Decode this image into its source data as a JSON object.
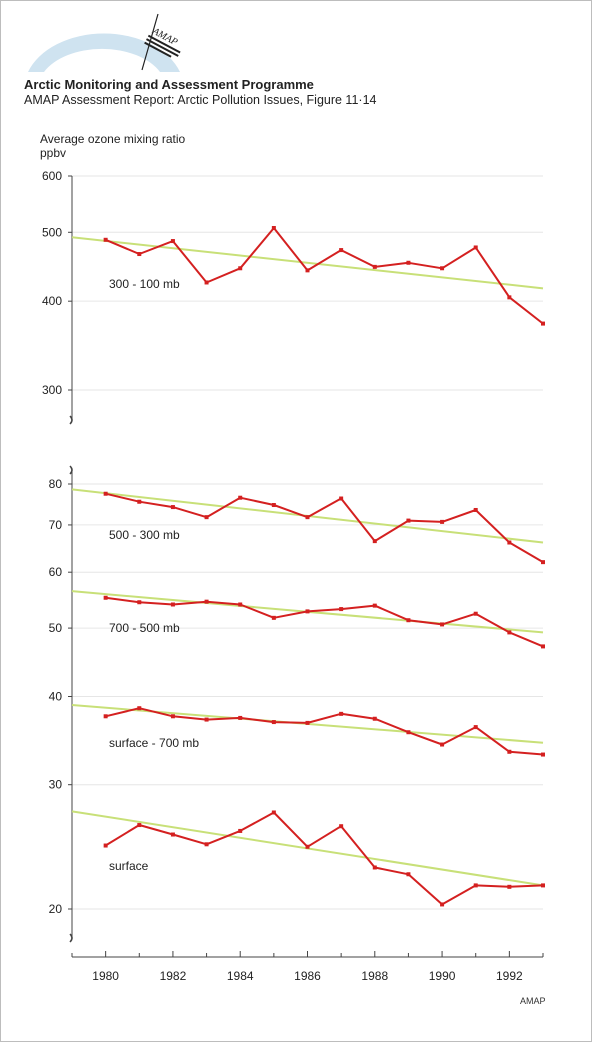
{
  "header": {
    "logo_text": "AMAP",
    "org_title": "Arctic Monitoring and Assessment Programme",
    "report_subtitle": "AMAP Assessment Report: Arctic Pollution Issues, Figure 11·14"
  },
  "colors": {
    "data_line": "#d42020",
    "trend_line": "#c8e078",
    "grid": "#e6e6e6",
    "axis": "#444444",
    "logo_arc": "#cfe3f0"
  },
  "chart_data": {
    "type": "line",
    "y_title": [
      "Average ozone mixing ratio",
      "ppbv"
    ],
    "y_scale": "log",
    "x_ticks": [
      1980,
      1982,
      1984,
      1986,
      1988,
      1990,
      1992
    ],
    "x_range": [
      1979,
      1993
    ],
    "upper_panel": {
      "y_ticks": [
        300,
        400,
        500,
        600
      ],
      "y_range": [
        270,
        600
      ],
      "series": [
        {
          "name": "300 - 100 mb",
          "x": [
            1980,
            1981,
            1982,
            1983,
            1984,
            1985,
            1986,
            1987,
            1988,
            1989,
            1990,
            1991,
            1992,
            1993
          ],
          "y": [
            488,
            466,
            486,
            425,
            445,
            507,
            442,
            472,
            447,
            453,
            445,
            476,
            405,
            372
          ],
          "trend": [
            [
              1979,
              492
            ],
            [
              1993,
              417
            ]
          ]
        }
      ]
    },
    "lower_panel": {
      "y_ticks": [
        20,
        30,
        40,
        50,
        60,
        70,
        80
      ],
      "y_range": [
        18,
        85
      ],
      "series": [
        {
          "name": "500 - 300 mb",
          "x": [
            1980,
            1981,
            1982,
            1983,
            1984,
            1985,
            1986,
            1987,
            1988,
            1989,
            1990,
            1991,
            1992,
            1993
          ],
          "y": [
            77.5,
            75.5,
            74.2,
            71.8,
            76.5,
            74.7,
            71.8,
            76.3,
            66.4,
            71,
            70.7,
            73.5,
            66.1,
            62
          ],
          "trend": [
            [
              1979,
              78.6
            ],
            [
              1993,
              66.1
            ]
          ]
        },
        {
          "name": "700 - 500 mb",
          "x": [
            1980,
            1981,
            1982,
            1983,
            1984,
            1985,
            1986,
            1987,
            1988,
            1989,
            1990,
            1991,
            1992,
            1993
          ],
          "y": [
            55.2,
            54.4,
            54,
            54.5,
            54,
            51.7,
            52.8,
            53.2,
            53.8,
            51.3,
            50.6,
            52.4,
            49.3,
            47.1
          ],
          "trend": [
            [
              1979,
              56.4
            ],
            [
              1993,
              49.3
            ]
          ]
        },
        {
          "name": "surface - 700 mb",
          "x": [
            1980,
            1981,
            1982,
            1983,
            1984,
            1985,
            1986,
            1987,
            1988,
            1989,
            1990,
            1991,
            1992,
            1993
          ],
          "y": [
            37.5,
            38.5,
            37.5,
            37.1,
            37.3,
            36.8,
            36.7,
            37.8,
            37.2,
            35.6,
            34.2,
            36.2,
            33.4,
            33.1
          ],
          "trend": [
            [
              1979,
              38.9
            ],
            [
              1993,
              34.4
            ]
          ]
        },
        {
          "name": "surface",
          "x": [
            1980,
            1981,
            1982,
            1983,
            1984,
            1985,
            1986,
            1987,
            1988,
            1989,
            1990,
            1991,
            1992,
            1993
          ],
          "y": [
            24.6,
            26.3,
            25.5,
            24.7,
            25.8,
            27.4,
            24.5,
            26.2,
            22.9,
            22.4,
            20.3,
            21.6,
            21.5,
            21.6
          ],
          "trend": [
            [
              1979,
              27.5
            ],
            [
              1993,
              21.6
            ]
          ]
        }
      ]
    },
    "credit": "AMAP"
  }
}
